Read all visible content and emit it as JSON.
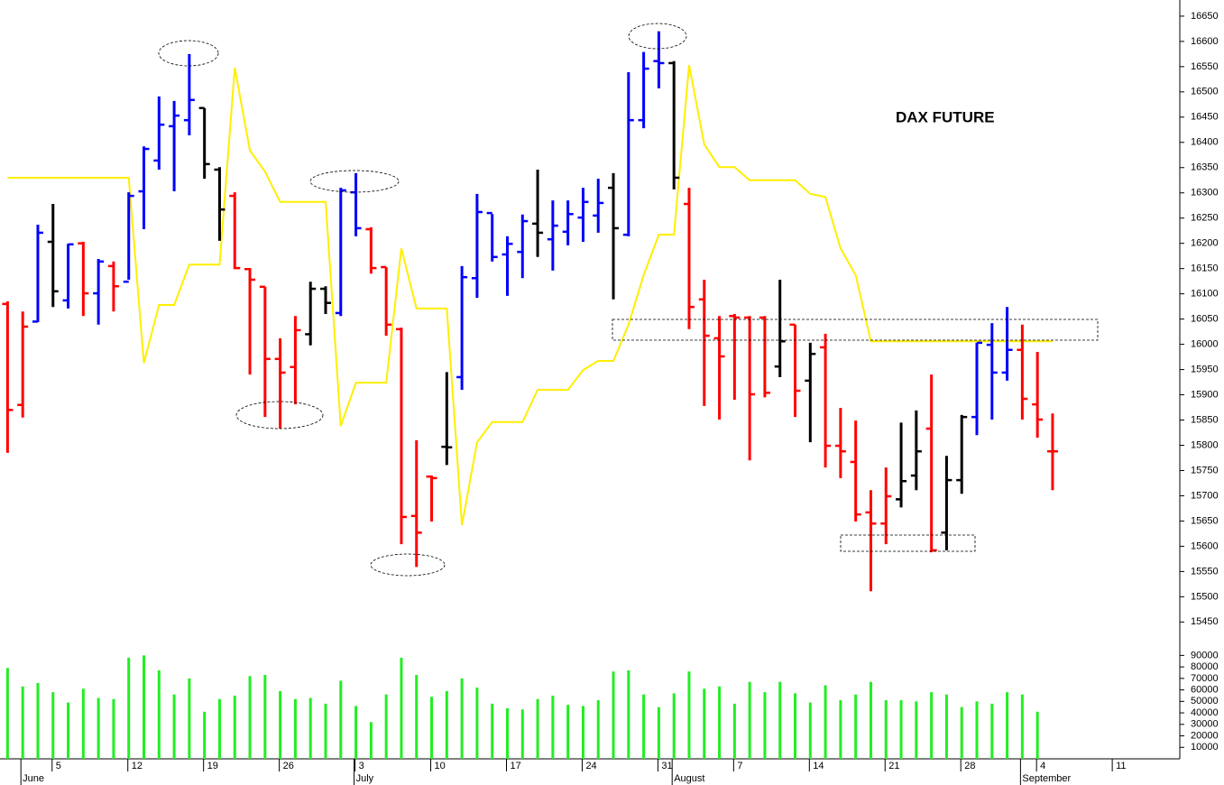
{
  "chart_data": {
    "type": "ohlc",
    "title": "DAX FUTURE",
    "x": [
      0,
      1,
      2,
      3,
      4,
      5,
      6,
      7,
      8,
      9,
      10,
      11,
      12,
      13,
      14,
      15,
      16,
      17,
      18,
      19,
      20,
      21,
      22,
      23,
      24,
      25,
      26,
      27,
      28,
      29,
      30,
      31,
      32,
      33,
      34,
      35,
      36,
      37,
      38,
      39,
      40,
      41,
      42,
      43,
      44,
      45,
      46,
      47,
      48,
      49,
      50,
      51,
      52,
      53,
      54,
      55,
      56,
      57,
      58,
      59,
      60,
      61,
      62,
      63,
      64,
      65,
      66,
      67,
      68,
      69
    ],
    "xlim": [
      -0.5,
      77.4
    ],
    "xticks": [
      {
        "value": 3,
        "label": "5"
      },
      {
        "value": 8,
        "label": "12"
      },
      {
        "value": 13,
        "label": "19"
      },
      {
        "value": 18,
        "label": "26"
      },
      {
        "value": 23,
        "label": "3"
      },
      {
        "value": 28,
        "label": "10"
      },
      {
        "value": 33,
        "label": "17"
      },
      {
        "value": 38,
        "label": "24"
      },
      {
        "value": 43,
        "label": "31"
      },
      {
        "value": 48,
        "label": "7"
      },
      {
        "value": 53,
        "label": "14"
      },
      {
        "value": 58,
        "label": "21"
      },
      {
        "value": 63,
        "label": "28"
      },
      {
        "value": 68,
        "label": "4"
      },
      {
        "value": 73,
        "label": "11"
      }
    ],
    "month_ticks": [
      {
        "value": 1,
        "label": "June"
      },
      {
        "value": 23,
        "label": "July"
      },
      {
        "value": 44,
        "label": "August"
      },
      {
        "value": 67,
        "label": "September"
      }
    ],
    "ylim": [
      15422,
      16682
    ],
    "yticks": [
      15450,
      15500,
      15550,
      15600,
      15650,
      15700,
      15750,
      15800,
      15850,
      15900,
      15950,
      16000,
      16050,
      16100,
      16150,
      16200,
      16250,
      16300,
      16350,
      16400,
      16450,
      16500,
      16550,
      16600,
      16650
    ],
    "open": [
      16080,
      15880,
      16045,
      16203,
      16087,
      16200,
      16101,
      16155,
      16124,
      16303,
      16364,
      16432,
      16444,
      16468,
      16346,
      16294,
      16149,
      16114,
      15971,
      15955,
      16020,
      16110,
      16062,
      16301,
      16228,
      16153,
      16030,
      15660,
      15738,
      15797,
      15935,
      16131,
      16260,
      16178,
      16183,
      16239,
      16208,
      16223,
      16251,
      16255,
      16310,
      16217,
      16444,
      16561,
      16557,
      16278,
      16089,
      16012,
      16056,
      16053,
      16053,
      15956,
      16039,
      15928,
      15994,
      15799,
      15767,
      15667,
      15645,
      15693,
      15740,
      15833,
      15627,
      15731,
      15856,
      15999,
      15944,
      15989,
      15881,
      15788
    ],
    "high": [
      16085,
      16065,
      16237,
      16278,
      16199,
      16203,
      16169,
      16164,
      16301,
      16392,
      16491,
      16482,
      16575,
      16468,
      16351,
      16301,
      16151,
      16114,
      16012,
      16056,
      16124,
      16115,
      16310,
      16339,
      16232,
      16153,
      16033,
      15810,
      15740,
      15945,
      16155,
      16298,
      16258,
      16214,
      16257,
      16346,
      16285,
      16285,
      16310,
      16328,
      16339,
      16539,
      16579,
      16620,
      16561,
      16310,
      16128,
      16056,
      16060,
      16056,
      16056,
      16128,
      16039,
      16003,
      16021,
      15874,
      15849,
      15711,
      15756,
      15845,
      15869,
      15940,
      15779,
      15860,
      16003,
      16042,
      16074,
      16039,
      15985,
      15863
    ],
    "low": [
      15785,
      15855,
      16044,
      16074,
      16071,
      16056,
      16039,
      16065,
      16128,
      16228,
      16346,
      16303,
      16414,
      16328,
      16205,
      16149,
      15940,
      15856,
      15833,
      15881,
      15998,
      16060,
      16056,
      16214,
      16140,
      16017,
      15604,
      15559,
      15649,
      15761,
      15910,
      16092,
      16164,
      16096,
      16131,
      16173,
      16146,
      16196,
      16203,
      16221,
      16089,
      16214,
      16428,
      16507,
      16307,
      16030,
      15878,
      15851,
      15890,
      15770,
      15895,
      15935,
      15856,
      15806,
      15756,
      15735,
      15649,
      15511,
      15604,
      15677,
      15711,
      15588,
      15592,
      15704,
      15820,
      15851,
      15928,
      15851,
      15815,
      15711
    ],
    "close": [
      15870,
      16035,
      16221,
      16105,
      16198,
      16101,
      16164,
      16115,
      16294,
      16387,
      16435,
      16453,
      16484,
      16357,
      16267,
      16151,
      16128,
      15971,
      15944,
      16028,
      16110,
      16082,
      16305,
      16230,
      16151,
      16039,
      15658,
      15627,
      15735,
      15796,
      16133,
      16262,
      16173,
      16199,
      16244,
      16221,
      16235,
      16258,
      16282,
      16280,
      16230,
      16444,
      16546,
      16557,
      16330,
      16074,
      16017,
      15976,
      16053,
      15901,
      15904,
      16006,
      15908,
      15981,
      15799,
      15788,
      15663,
      15645,
      15699,
      15729,
      15788,
      15592,
      15731,
      15856,
      16003,
      15944,
      15989,
      15892,
      15851,
      15788
    ],
    "bar_colors": [
      "#ff0000",
      "#ff0000",
      "#0000ff",
      "#000000",
      "#0000ff",
      "#ff0000",
      "#0000ff",
      "#ff0000",
      "#0000ff",
      "#0000ff",
      "#0000ff",
      "#0000ff",
      "#0000ff",
      "#000000",
      "#000000",
      "#ff0000",
      "#ff0000",
      "#ff0000",
      "#ff0000",
      "#ff0000",
      "#000000",
      "#000000",
      "#0000ff",
      "#0000ff",
      "#ff0000",
      "#ff0000",
      "#ff0000",
      "#ff0000",
      "#ff0000",
      "#000000",
      "#0000ff",
      "#0000ff",
      "#0000ff",
      "#0000ff",
      "#0000ff",
      "#000000",
      "#0000ff",
      "#0000ff",
      "#0000ff",
      "#0000ff",
      "#000000",
      "#0000ff",
      "#0000ff",
      "#0000ff",
      "#000000",
      "#ff0000",
      "#ff0000",
      "#ff0000",
      "#ff0000",
      "#ff0000",
      "#ff0000",
      "#000000",
      "#ff0000",
      "#000000",
      "#ff0000",
      "#ff0000",
      "#ff0000",
      "#ff0000",
      "#ff0000",
      "#000000",
      "#000000",
      "#ff0000",
      "#000000",
      "#000000",
      "#0000ff",
      "#0000ff",
      "#0000ff",
      "#ff0000",
      "#ff0000",
      "#ff0000"
    ],
    "line": {
      "color": "#ffee00",
      "values": [
        16330,
        16330,
        16330,
        16330,
        16330,
        16330,
        16330,
        16330,
        16330,
        15963,
        16078,
        16078,
        16158,
        16158,
        16158,
        16548,
        16384,
        16342,
        16282,
        16282,
        16282,
        16282,
        15838,
        15924,
        15924,
        15924,
        16190,
        16071,
        16071,
        16071,
        15642,
        15806,
        15846,
        15846,
        15846,
        15910,
        15910,
        15910,
        15949,
        15967,
        15967,
        16039,
        16137,
        16217,
        16217,
        16553,
        16396,
        16351,
        16351,
        16325,
        16325,
        16325,
        16325,
        16298,
        16292,
        16190,
        16137,
        16006,
        16006,
        16006,
        16006,
        16006,
        16006,
        16006,
        16006,
        16006,
        16006,
        16006,
        16006,
        16006
      ]
    },
    "volume": {
      "color": "#22ee22",
      "ylim": [
        0,
        106000
      ],
      "yticks": [
        10000,
        20000,
        30000,
        40000,
        50000,
        60000,
        70000,
        80000,
        90000
      ],
      "values": [
        79000,
        63000,
        66000,
        58000,
        49000,
        61000,
        53000,
        52000,
        88000,
        90000,
        77000,
        56000,
        70000,
        41000,
        52000,
        55000,
        72000,
        73000,
        59000,
        52000,
        53000,
        48000,
        68000,
        46000,
        32000,
        56000,
        88000,
        73000,
        54000,
        59000,
        70000,
        62000,
        48000,
        44000,
        43000,
        52000,
        55000,
        47000,
        46000,
        51000,
        76000,
        77000,
        56000,
        45000,
        57000,
        76000,
        61000,
        63000,
        48000,
        67000,
        58000,
        67000,
        57000,
        49000,
        64000,
        51000,
        56000,
        67000,
        51000,
        51000,
        50000,
        58000,
        56000,
        45000,
        50000,
        48000,
        58000,
        56000,
        41000,
        null
      ]
    }
  }
}
